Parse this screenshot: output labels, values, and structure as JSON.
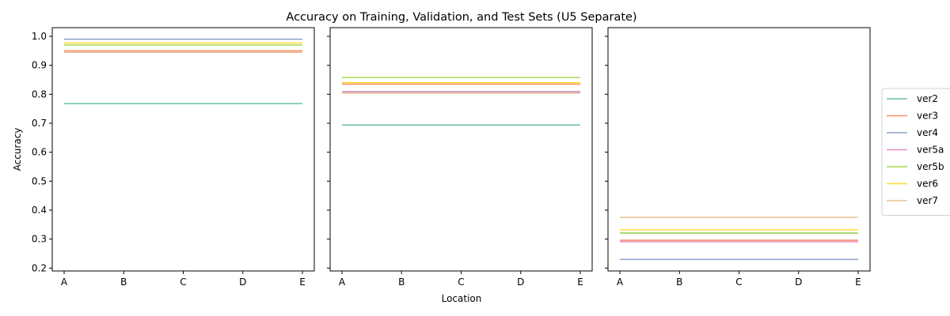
{
  "chart_data": {
    "type": "line",
    "title": "Accuracy on Training, Validation, and Test Sets (U5 Separate)",
    "xlabel": "Location",
    "ylabel": "Accuracy",
    "categories": [
      "A",
      "B",
      "C",
      "D",
      "E"
    ],
    "ylim": [
      0.19,
      1.03
    ],
    "yticks": [
      0.2,
      0.3,
      0.4,
      0.5,
      0.6,
      0.7,
      0.8,
      0.9,
      1.0
    ],
    "ytick_labels": [
      "0.2",
      "0.3",
      "0.4",
      "0.5",
      "0.6",
      "0.7",
      "0.8",
      "0.9",
      "1.0"
    ],
    "sharey": true,
    "grid": false,
    "legend_position": "right",
    "series": [
      {
        "name": "ver2",
        "color": "#66c2a5"
      },
      {
        "name": "ver3",
        "color": "#fc8d62"
      },
      {
        "name": "ver4",
        "color": "#8da0cb"
      },
      {
        "name": "ver5a",
        "color": "#e78ac3"
      },
      {
        "name": "ver5b",
        "color": "#a6d854"
      },
      {
        "name": "ver6",
        "color": "#ffd92f"
      },
      {
        "name": "ver7",
        "color": "#e5c494"
      }
    ],
    "panels": [
      {
        "values": {
          "ver2": [
            0.768,
            0.768,
            0.768,
            0.768,
            0.768
          ],
          "ver3": [
            0.95,
            0.95,
            0.95,
            0.95,
            0.95
          ],
          "ver4": [
            0.99,
            0.99,
            0.99,
            0.99,
            0.99
          ],
          "ver5a": [
            0.945,
            0.945,
            0.945,
            0.945,
            0.945
          ],
          "ver5b": [
            0.97,
            0.97,
            0.97,
            0.97,
            0.97
          ],
          "ver6": [
            0.977,
            0.977,
            0.977,
            0.977,
            0.977
          ],
          "ver7": [
            0.945,
            0.945,
            0.945,
            0.945,
            0.945
          ]
        }
      },
      {
        "values": {
          "ver2": [
            0.694,
            0.694,
            0.694,
            0.694,
            0.694
          ],
          "ver3": [
            0.835,
            0.835,
            0.835,
            0.835,
            0.835
          ],
          "ver4": [
            0.809,
            0.809,
            0.809,
            0.809,
            0.809
          ],
          "ver5a": [
            0.808,
            0.808,
            0.808,
            0.808,
            0.808
          ],
          "ver5b": [
            0.858,
            0.858,
            0.858,
            0.858,
            0.858
          ],
          "ver6": [
            0.84,
            0.84,
            0.84,
            0.84,
            0.84
          ],
          "ver7": [
            0.804,
            0.804,
            0.804,
            0.804,
            0.804
          ]
        }
      },
      {
        "values": {
          "ver2": [
            0.321,
            0.321,
            0.321,
            0.321,
            0.321
          ],
          "ver3": [
            0.296,
            0.296,
            0.296,
            0.296,
            0.296
          ],
          "ver4": [
            0.23,
            0.23,
            0.23,
            0.23,
            0.23
          ],
          "ver5a": [
            0.291,
            0.291,
            0.291,
            0.291,
            0.291
          ],
          "ver5b": [
            0.321,
            0.321,
            0.321,
            0.321,
            0.321
          ],
          "ver6": [
            0.332,
            0.332,
            0.332,
            0.332,
            0.332
          ],
          "ver7": [
            0.375,
            0.375,
            0.375,
            0.375,
            0.375
          ]
        }
      }
    ]
  }
}
